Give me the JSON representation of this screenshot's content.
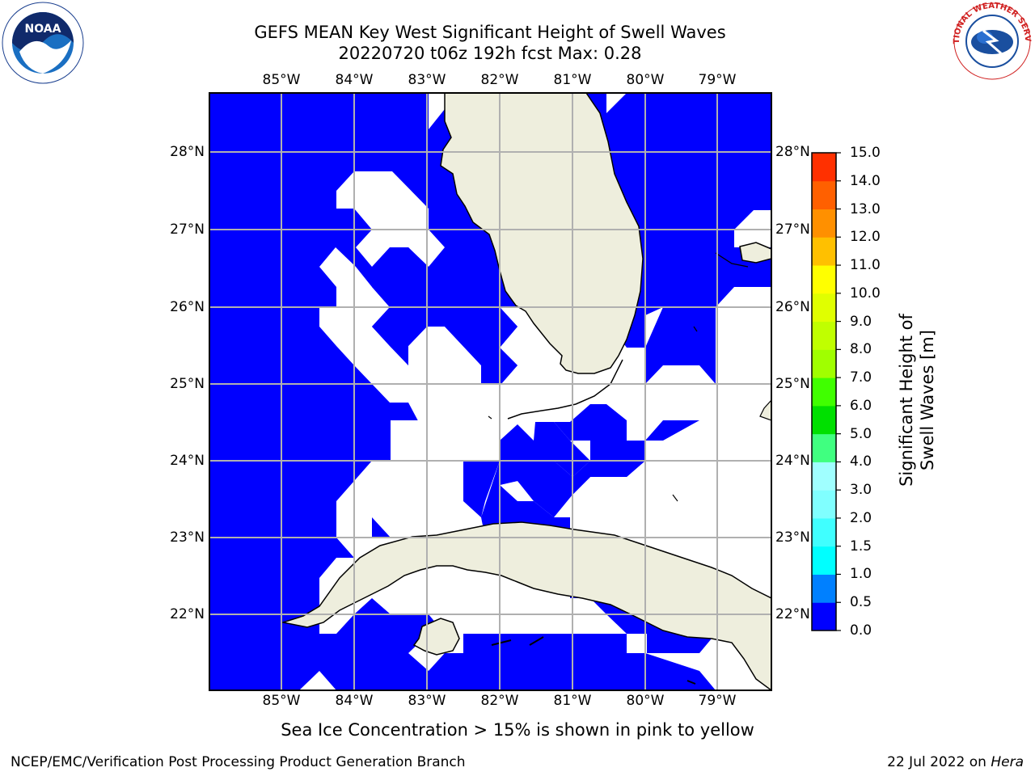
{
  "header": {
    "title_line1": "GEFS MEAN Key West Significant Height of Swell Waves",
    "title_line2": "20220720 t06z 192h fcst   Max: 0.28"
  },
  "logos": {
    "left": {
      "icon": "noaa-logo-icon",
      "text": "NOAA"
    },
    "right": {
      "icon": "nws-logo-icon",
      "text": "NATIONAL WEATHER SERVICE"
    }
  },
  "map": {
    "lon_labels": [
      "85°W",
      "84°W",
      "83°W",
      "82°W",
      "81°W",
      "80°W",
      "79°W"
    ],
    "lat_labels": [
      "28°N",
      "27°N",
      "26°N",
      "25°N",
      "24°N",
      "23°N",
      "22°N"
    ],
    "colors": {
      "ocean_low": "#0000ff",
      "land": "#eeeedd",
      "grid": "#b0b0b0",
      "no_data": "#ffffff"
    }
  },
  "colorbar": {
    "label": "Significant Height of Swell Waves [m]",
    "ticks": [
      "0.0",
      "0.5",
      "1.0",
      "1.5",
      "2.0",
      "3.0",
      "4.0",
      "5.0",
      "6.0",
      "7.0",
      "8.0",
      "9.0",
      "10.0",
      "11.0",
      "12.0",
      "13.0",
      "14.0",
      "15.0"
    ],
    "colors": [
      "#0000ff",
      "#0080ff",
      "#00ffff",
      "#40ffff",
      "#80ffff",
      "#a0ffff",
      "#40ff80",
      "#00e000",
      "#40ff00",
      "#a0ff00",
      "#c0ff00",
      "#e0ff00",
      "#ffff00",
      "#ffc000",
      "#ff9000",
      "#ff6000",
      "#ff3000",
      "#ff0000"
    ]
  },
  "note": "Sea Ice Concentration > 15% is shown in pink to yellow",
  "footer": {
    "left": "NCEP/EMC/Verification Post Processing Product Generation Branch",
    "right_prefix": "22 Jul 2022 on ",
    "right_host": "Hera"
  }
}
